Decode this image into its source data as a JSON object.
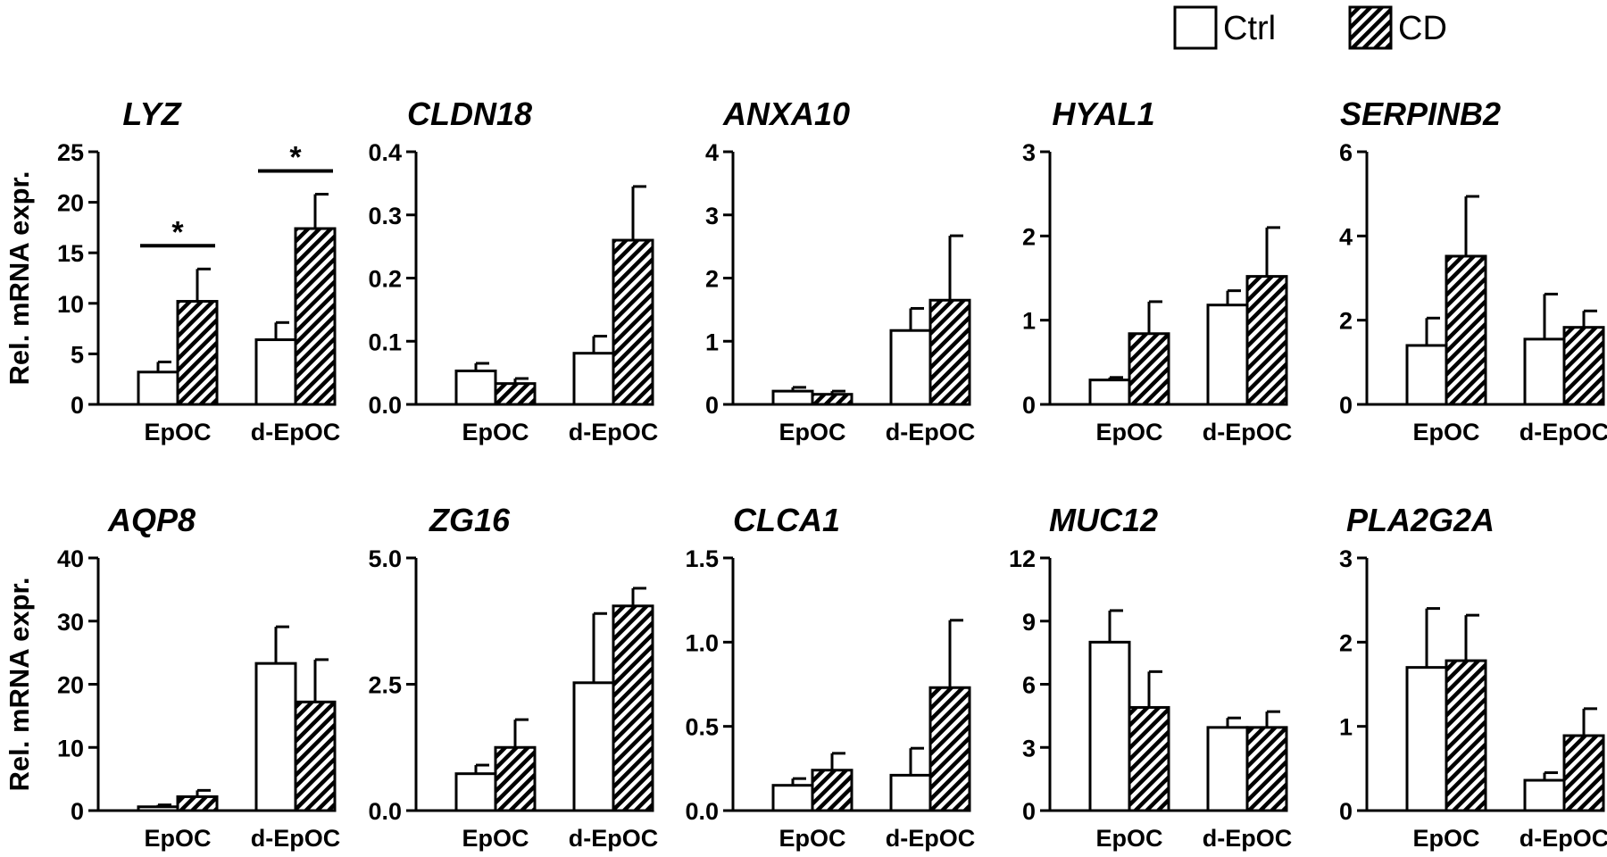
{
  "legend": {
    "items": [
      {
        "label": "Ctrl",
        "pattern": "open"
      },
      {
        "label": "CD",
        "pattern": "hatched"
      }
    ]
  },
  "chart_data": [
    {
      "type": "bar",
      "title": "LYZ",
      "ylabel": "Rel. mRNA expr.",
      "categories": [
        "EpOC",
        "d-EpOC"
      ],
      "ylim": [
        0,
        25
      ],
      "yticks": [
        "0",
        "5",
        "10",
        "15",
        "20",
        "25"
      ],
      "series": [
        {
          "name": "Ctrl",
          "values": [
            3.2,
            6.4
          ],
          "errors": [
            1.0,
            1.7
          ]
        },
        {
          "name": "CD",
          "values": [
            10.2,
            17.4
          ],
          "errors": [
            3.2,
            3.4
          ]
        }
      ],
      "annotations": [
        {
          "category": "EpOC",
          "text": "*"
        },
        {
          "category": "d-EpOC",
          "text": "*"
        }
      ]
    },
    {
      "type": "bar",
      "title": "CLDN18",
      "ylabel": "",
      "categories": [
        "EpOC",
        "d-EpOC"
      ],
      "ylim": [
        0,
        0.4
      ],
      "yticks": [
        "0.0",
        "0.1",
        "0.2",
        "0.3",
        "0.4"
      ],
      "series": [
        {
          "name": "Ctrl",
          "values": [
            0.053,
            0.081
          ],
          "errors": [
            0.012,
            0.027
          ]
        },
        {
          "name": "CD",
          "values": [
            0.033,
            0.26
          ],
          "errors": [
            0.008,
            0.085
          ]
        }
      ],
      "annotations": []
    },
    {
      "type": "bar",
      "title": "ANXA10",
      "ylabel": "",
      "categories": [
        "EpOC",
        "d-EpOC"
      ],
      "ylim": [
        0,
        4
      ],
      "yticks": [
        "0",
        "1",
        "2",
        "3",
        "4"
      ],
      "series": [
        {
          "name": "Ctrl",
          "values": [
            0.21,
            1.17
          ],
          "errors": [
            0.06,
            0.35
          ]
        },
        {
          "name": "CD",
          "values": [
            0.16,
            1.65
          ],
          "errors": [
            0.05,
            1.02
          ]
        }
      ],
      "annotations": []
    },
    {
      "type": "bar",
      "title": "HYAL1",
      "ylabel": "",
      "categories": [
        "EpOC",
        "d-EpOC"
      ],
      "ylim": [
        0,
        3
      ],
      "yticks": [
        "0",
        "1",
        "2",
        "3"
      ],
      "series": [
        {
          "name": "Ctrl",
          "values": [
            0.29,
            1.18
          ],
          "errors": [
            0.03,
            0.17
          ]
        },
        {
          "name": "CD",
          "values": [
            0.84,
            1.52
          ],
          "errors": [
            0.38,
            0.58
          ]
        }
      ],
      "annotations": []
    },
    {
      "type": "bar",
      "title": "SERPINB2",
      "ylabel": "",
      "categories": [
        "EpOC",
        "d-EpOC"
      ],
      "ylim": [
        0,
        6
      ],
      "yticks": [
        "0",
        "2",
        "4",
        "6"
      ],
      "series": [
        {
          "name": "Ctrl",
          "values": [
            1.4,
            1.55
          ],
          "errors": [
            0.65,
            1.07
          ]
        },
        {
          "name": "CD",
          "values": [
            3.52,
            1.83
          ],
          "errors": [
            1.42,
            0.39
          ]
        }
      ],
      "annotations": []
    },
    {
      "type": "bar",
      "title": "AQP8",
      "ylabel": "Rel. mRNA expr.",
      "categories": [
        "EpOC",
        "d-EpOC"
      ],
      "ylim": [
        0,
        40
      ],
      "yticks": [
        "0",
        "10",
        "20",
        "30",
        "40"
      ],
      "series": [
        {
          "name": "Ctrl",
          "values": [
            0.6,
            23.3
          ],
          "errors": [
            0.3,
            5.8
          ]
        },
        {
          "name": "CD",
          "values": [
            2.2,
            17.2
          ],
          "errors": [
            1.0,
            6.7
          ]
        }
      ],
      "annotations": []
    },
    {
      "type": "bar",
      "title": "ZG16",
      "ylabel": "",
      "categories": [
        "EpOC",
        "d-EpOC"
      ],
      "ylim": [
        0,
        5
      ],
      "yticks": [
        "0.0",
        "2.5",
        "5.0"
      ],
      "series": [
        {
          "name": "Ctrl",
          "values": [
            0.73,
            2.53
          ],
          "errors": [
            0.17,
            1.37
          ]
        },
        {
          "name": "CD",
          "values": [
            1.25,
            4.05
          ],
          "errors": [
            0.55,
            0.35
          ]
        }
      ],
      "annotations": []
    },
    {
      "type": "bar",
      "title": "CLCA1",
      "ylabel": "",
      "categories": [
        "EpOC",
        "d-EpOC"
      ],
      "ylim": [
        0,
        1.5
      ],
      "yticks": [
        "0.0",
        "0.5",
        "1.0",
        "1.5"
      ],
      "series": [
        {
          "name": "Ctrl",
          "values": [
            0.15,
            0.21
          ],
          "errors": [
            0.04,
            0.16
          ]
        },
        {
          "name": "CD",
          "values": [
            0.24,
            0.73
          ],
          "errors": [
            0.1,
            0.4
          ]
        }
      ],
      "annotations": []
    },
    {
      "type": "bar",
      "title": "MUC12",
      "ylabel": "",
      "categories": [
        "EpOC",
        "d-EpOC"
      ],
      "ylim": [
        0,
        12
      ],
      "yticks": [
        "0",
        "3",
        "6",
        "9",
        "12"
      ],
      "series": [
        {
          "name": "Ctrl",
          "values": [
            8.0,
            3.95
          ],
          "errors": [
            1.5,
            0.45
          ]
        },
        {
          "name": "CD",
          "values": [
            4.9,
            3.95
          ],
          "errors": [
            1.7,
            0.75
          ]
        }
      ],
      "annotations": []
    },
    {
      "type": "bar",
      "title": "PLA2G2A",
      "ylabel": "",
      "categories": [
        "EpOC",
        "d-EpOC"
      ],
      "ylim": [
        0,
        3
      ],
      "yticks": [
        "0",
        "1",
        "2",
        "3"
      ],
      "series": [
        {
          "name": "Ctrl",
          "values": [
            1.7,
            0.36
          ],
          "errors": [
            0.7,
            0.09
          ]
        },
        {
          "name": "CD",
          "values": [
            1.78,
            0.89
          ],
          "errors": [
            0.54,
            0.32
          ]
        }
      ],
      "annotations": []
    }
  ]
}
